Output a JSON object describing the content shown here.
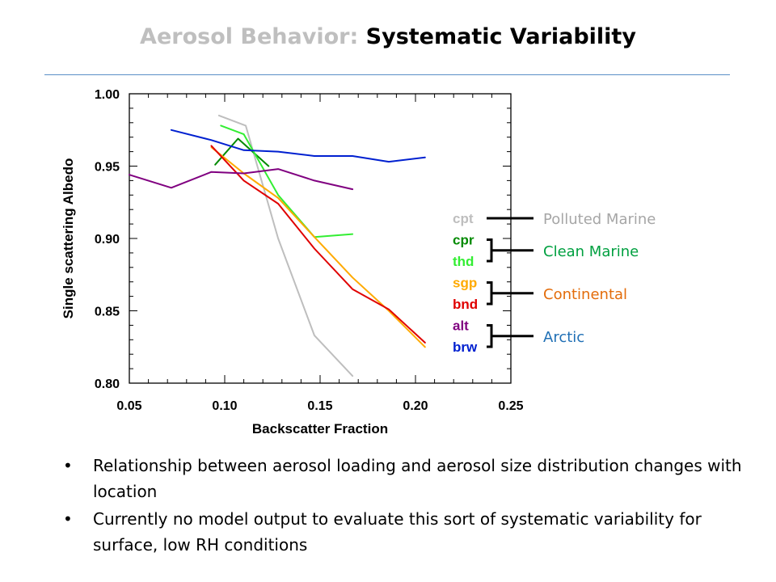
{
  "slide": {
    "title_prefix": "Aerosol Behavior:",
    "title_main": "Systematic Variability",
    "bullet_glyph": "•",
    "bullets": [
      "Relationship between aerosol loading and aerosol size distribution changes with location",
      "Currently no model output to evaluate this sort of systematic variability for surface, low RH conditions"
    ]
  },
  "chart_data": {
    "type": "line",
    "title": "",
    "xlabel": "Backscatter Fraction",
    "ylabel": "Single scattering Albedo",
    "xlim": [
      0.05,
      0.25
    ],
    "ylim": [
      0.8,
      1.0
    ],
    "xticks": [
      0.05,
      0.1,
      0.15,
      0.2,
      0.25
    ],
    "xtick_labels": [
      "0.05",
      "0.10",
      "0.15",
      "0.20",
      "0.25"
    ],
    "yticks": [
      0.8,
      0.85,
      0.9,
      0.95,
      1.0
    ],
    "ytick_labels": [
      "0.80",
      "0.85",
      "0.90",
      "0.95",
      "1.00"
    ],
    "grid": false,
    "legend_position": "right",
    "series": [
      {
        "name": "cpt",
        "color": "#bebebe",
        "x": [
          0.097,
          0.111,
          0.128,
          0.147,
          0.167
        ],
        "y": [
          0.985,
          0.978,
          0.9,
          0.833,
          0.805
        ]
      },
      {
        "name": "cpr",
        "color": "#008a00",
        "x": [
          0.095,
          0.107,
          0.123
        ],
        "y": [
          0.951,
          0.969,
          0.95
        ]
      },
      {
        "name": "thd",
        "color": "#33ee33",
        "x": [
          0.098,
          0.11,
          0.128,
          0.147,
          0.167
        ],
        "y": [
          0.978,
          0.972,
          0.93,
          0.901,
          0.903
        ]
      },
      {
        "name": "sgp",
        "color": "#ffaa00",
        "x": [
          0.093,
          0.11,
          0.128,
          0.147,
          0.167,
          0.186,
          0.205
        ],
        "y": [
          0.963,
          0.945,
          0.928,
          0.901,
          0.873,
          0.85,
          0.825
        ]
      },
      {
        "name": "bnd",
        "color": "#e00000",
        "x": [
          0.093,
          0.11,
          0.128,
          0.147,
          0.167,
          0.186,
          0.205
        ],
        "y": [
          0.964,
          0.94,
          0.924,
          0.893,
          0.865,
          0.851,
          0.828
        ]
      },
      {
        "name": "alt",
        "color": "#800080",
        "x": [
          0.05,
          0.072,
          0.093,
          0.11,
          0.128,
          0.147,
          0.167
        ],
        "y": [
          0.944,
          0.935,
          0.946,
          0.945,
          0.948,
          0.94,
          0.934
        ]
      },
      {
        "name": "brw",
        "color": "#0020d0",
        "x": [
          0.072,
          0.093,
          0.11,
          0.128,
          0.147,
          0.167,
          0.186,
          0.205
        ],
        "y": [
          0.975,
          0.968,
          0.961,
          0.96,
          0.957,
          0.957,
          0.953,
          0.956
        ]
      }
    ],
    "groups": [
      {
        "label": "Polluted Marine",
        "color": "#a6a6a6",
        "members": [
          "cpt"
        ]
      },
      {
        "label": "Clean Marine",
        "color": "#00a040",
        "members": [
          "cpr",
          "thd"
        ]
      },
      {
        "label": "Continental",
        "color": "#e36c0a",
        "members": [
          "sgp",
          "bnd"
        ]
      },
      {
        "label": "Arctic",
        "color": "#1f6fb5",
        "members": [
          "alt",
          "brw"
        ]
      }
    ]
  }
}
